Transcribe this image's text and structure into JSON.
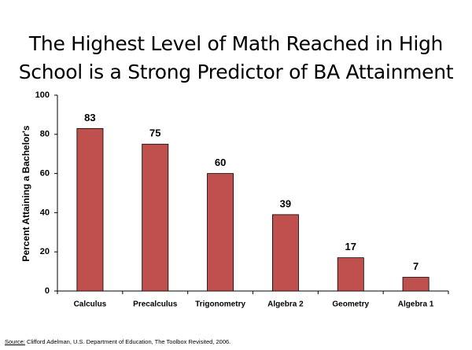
{
  "chart_data": {
    "type": "bar",
    "title": "The Highest Level of Math Reached in High School is a Strong Predictor of BA Attainment",
    "y_label": "Percent Attaining a Bachelor's",
    "categories": [
      "Calculus",
      "Precalculus",
      "Trigonometry",
      "Algebra 2",
      "Geometry",
      "Algebra 1"
    ],
    "values": [
      83,
      75,
      60,
      39,
      17,
      7
    ],
    "color": "#c0504d",
    "ylim": [
      0,
      100
    ],
    "yticks": [
      0,
      20,
      40,
      60,
      80,
      100
    ],
    "grid": false,
    "source": {
      "label": "Source:",
      "text": " Clifford Adelman, U.S. Department of Education, The Toolbox Revisited, 2006."
    }
  }
}
